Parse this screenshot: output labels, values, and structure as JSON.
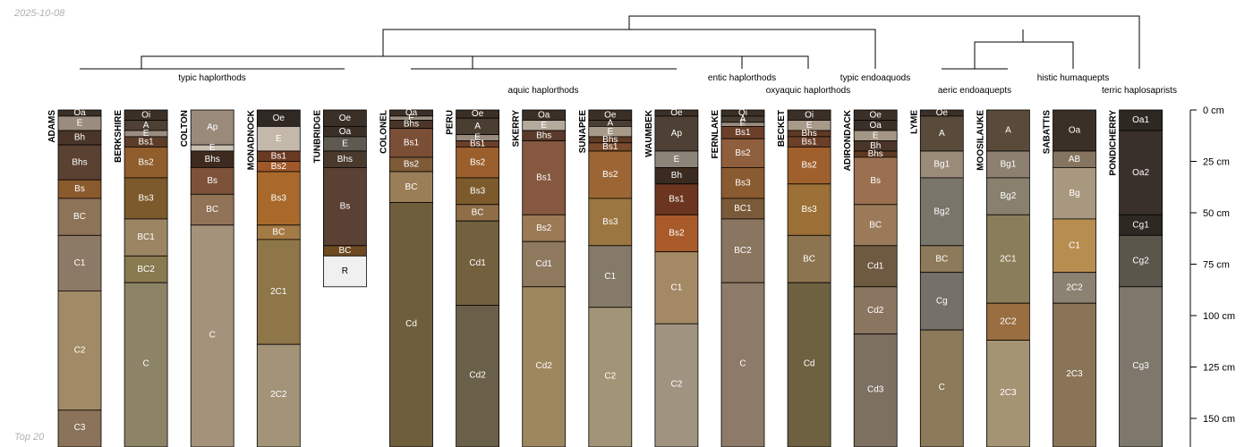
{
  "date_label": "2025-10-08",
  "footer_label": "Top 20",
  "depth_axis": {
    "unit": "cm",
    "max_depth": 165,
    "ticks": [
      {
        "value": 0,
        "label": "0 cm"
      },
      {
        "value": 25,
        "label": "25 cm"
      },
      {
        "value": 50,
        "label": "50 cm"
      },
      {
        "value": 75,
        "label": "75 cm"
      },
      {
        "value": 100,
        "label": "100 cm"
      },
      {
        "value": 125,
        "label": "125 cm"
      },
      {
        "value": 150,
        "label": "150 cm"
      }
    ]
  },
  "taxa_labels": [
    "typic haplorthods",
    "aquic haplorthods",
    "entic haplorthods",
    "oxyaquic haplorthods",
    "typic endoaquods",
    "aeric endoaquepts",
    "histic humaquepts",
    "terric haplosaprists"
  ],
  "profiles": [
    {
      "name": "ADAMS",
      "horizons": [
        {
          "name": "Oa",
          "top": 0,
          "bottom": 3,
          "color": "#3b3027"
        },
        {
          "name": "E",
          "top": 3,
          "bottom": 10,
          "color": "#9a8d80"
        },
        {
          "name": "Bh",
          "top": 10,
          "bottom": 17,
          "color": "#4a3528"
        },
        {
          "name": "Bhs",
          "top": 17,
          "bottom": 34,
          "color": "#5b4132"
        },
        {
          "name": "Bs",
          "top": 34,
          "bottom": 43,
          "color": "#8a5a2c"
        },
        {
          "name": "BC",
          "top": 43,
          "bottom": 61,
          "color": "#8d7357"
        },
        {
          "name": "C1",
          "top": 61,
          "bottom": 88,
          "color": "#8c7a66"
        },
        {
          "name": "C2",
          "top": 88,
          "bottom": 146,
          "color": "#a38a67"
        },
        {
          "name": "C3",
          "top": 146,
          "bottom": 165,
          "color": "#8a7359"
        }
      ]
    },
    {
      "name": "BERKSHIRE",
      "horizons": [
        {
          "name": "Oi",
          "top": 0,
          "bottom": 5,
          "color": "#3b3027"
        },
        {
          "name": "A",
          "top": 5,
          "bottom": 10,
          "color": "#4e4034"
        },
        {
          "name": "E",
          "top": 10,
          "bottom": 13,
          "color": "#9a8d80"
        },
        {
          "name": "Bs1",
          "top": 13,
          "bottom": 18,
          "color": "#5d3c2a"
        },
        {
          "name": "Bs2",
          "top": 18,
          "bottom": 33,
          "color": "#8f5e2c"
        },
        {
          "name": "Bs3",
          "top": 33,
          "bottom": 53,
          "color": "#7c5a2c"
        },
        {
          "name": "BC1",
          "top": 53,
          "bottom": 71,
          "color": "#9b8563"
        },
        {
          "name": "BC2",
          "top": 71,
          "bottom": 84,
          "color": "#8a7a50"
        },
        {
          "name": "C",
          "top": 84,
          "bottom": 165,
          "color": "#8d8468"
        }
      ]
    },
    {
      "name": "COLTON",
      "horizons": [
        {
          "name": "Ap",
          "top": 0,
          "bottom": 17,
          "color": "#9a8a7a"
        },
        {
          "name": "E",
          "top": 17,
          "bottom": 20,
          "color": "#c8bfb0"
        },
        {
          "name": "Bhs",
          "top": 20,
          "bottom": 28,
          "color": "#3f2a1f"
        },
        {
          "name": "Bs",
          "top": 28,
          "bottom": 41,
          "color": "#7d5239"
        },
        {
          "name": "BC",
          "top": 41,
          "bottom": 56,
          "color": "#917357"
        },
        {
          "name": "C",
          "top": 56,
          "bottom": 165,
          "color": "#a5927a"
        }
      ]
    },
    {
      "name": "MONADNOCK",
      "horizons": [
        {
          "name": "Oe",
          "top": 0,
          "bottom": 8,
          "color": "#2f2823"
        },
        {
          "name": "E",
          "top": 8,
          "bottom": 20,
          "color": "#c4b8ab"
        },
        {
          "name": "Bs1",
          "top": 20,
          "bottom": 25,
          "color": "#6b3a22"
        },
        {
          "name": "Bs2",
          "top": 25,
          "bottom": 30,
          "color": "#a0582a"
        },
        {
          "name": "Bs3",
          "top": 30,
          "bottom": 56,
          "color": "#a8692a"
        },
        {
          "name": "BC",
          "top": 56,
          "bottom": 63,
          "color": "#a47a45"
        },
        {
          "name": "2C1",
          "top": 63,
          "bottom": 114,
          "color": "#8e7649"
        },
        {
          "name": "2C2",
          "top": 114,
          "bottom": 165,
          "color": "#a39478"
        }
      ]
    },
    {
      "name": "TUNBRIDGE",
      "horizons": [
        {
          "name": "Oe",
          "top": 0,
          "bottom": 8,
          "color": "#3b3027"
        },
        {
          "name": "Oa",
          "top": 8,
          "bottom": 13,
          "color": "#3b3027"
        },
        {
          "name": "E",
          "top": 13,
          "bottom": 20,
          "color": "#5e5a50"
        },
        {
          "name": "Bhs",
          "top": 20,
          "bottom": 28,
          "color": "#4a3a2e"
        },
        {
          "name": "Bs",
          "top": 28,
          "bottom": 66,
          "color": "#5a4134"
        },
        {
          "name": "BC",
          "top": 66,
          "bottom": 71,
          "color": "#6e4a22"
        },
        {
          "name": "R",
          "top": 71,
          "bottom": 86,
          "color": "#f0f0f0",
          "light_text": false
        }
      ]
    },
    {
      "name": "COLONEL",
      "horizons": [
        {
          "name": "Oa",
          "top": 0,
          "bottom": 3,
          "color": "#3b3027"
        },
        {
          "name": "E",
          "top": 3,
          "bottom": 5,
          "color": "#9a8d80"
        },
        {
          "name": "Bhs",
          "top": 5,
          "bottom": 9,
          "color": "#4a3528"
        },
        {
          "name": "Bs1",
          "top": 9,
          "bottom": 23,
          "color": "#7a4f36"
        },
        {
          "name": "Bs2",
          "top": 23,
          "bottom": 30,
          "color": "#7e5a37"
        },
        {
          "name": "BC",
          "top": 30,
          "bottom": 45,
          "color": "#9a7e57"
        },
        {
          "name": "Cd",
          "top": 45,
          "bottom": 165,
          "color": "#6f5e3c"
        }
      ]
    },
    {
      "name": "PERU",
      "horizons": [
        {
          "name": "Oe",
          "top": 0,
          "bottom": 4,
          "color": "#3b3027"
        },
        {
          "name": "A",
          "top": 4,
          "bottom": 12,
          "color": "#4a3e32"
        },
        {
          "name": "E",
          "top": 12,
          "bottom": 15,
          "color": "#9a8d80"
        },
        {
          "name": "Bs1",
          "top": 15,
          "bottom": 18,
          "color": "#6b3f28"
        },
        {
          "name": "Bs2",
          "top": 18,
          "bottom": 33,
          "color": "#9a5f2d"
        },
        {
          "name": "Bs3",
          "top": 33,
          "bottom": 46,
          "color": "#7c5a2c"
        },
        {
          "name": "BC",
          "top": 46,
          "bottom": 54,
          "color": "#8e6d47"
        },
        {
          "name": "Cd1",
          "top": 54,
          "bottom": 95,
          "color": "#73603f"
        },
        {
          "name": "Cd2",
          "top": 95,
          "bottom": 165,
          "color": "#6a5f48"
        }
      ]
    },
    {
      "name": "SKERRY",
      "horizons": [
        {
          "name": "Oa",
          "top": 0,
          "bottom": 5,
          "color": "#3b3027"
        },
        {
          "name": "E",
          "top": 5,
          "bottom": 10,
          "color": "#b5aa9c"
        },
        {
          "name": "Bhs",
          "top": 10,
          "bottom": 15,
          "color": "#5a3a2a"
        },
        {
          "name": "Bs1",
          "top": 15,
          "bottom": 51,
          "color": "#85583f"
        },
        {
          "name": "Bs2",
          "top": 51,
          "bottom": 64,
          "color": "#9c7a55"
        },
        {
          "name": "Cd1",
          "top": 64,
          "bottom": 86,
          "color": "#8f7a60"
        },
        {
          "name": "Cd2",
          "top": 86,
          "bottom": 165,
          "color": "#9e865f"
        }
      ]
    },
    {
      "name": "SUNAPEE",
      "horizons": [
        {
          "name": "Oe",
          "top": 0,
          "bottom": 5,
          "color": "#3b3027"
        },
        {
          "name": "A",
          "top": 5,
          "bottom": 8,
          "color": "#4a3e32"
        },
        {
          "name": "E",
          "top": 8,
          "bottom": 13,
          "color": "#a89a88"
        },
        {
          "name": "Bhs",
          "top": 13,
          "bottom": 16,
          "color": "#5e3a24"
        },
        {
          "name": "Bs1",
          "top": 16,
          "bottom": 20,
          "color": "#7a4a2c"
        },
        {
          "name": "Bs2",
          "top": 20,
          "bottom": 43,
          "color": "#9c6634"
        },
        {
          "name": "Bs3",
          "top": 43,
          "bottom": 66,
          "color": "#9b7640"
        },
        {
          "name": "C1",
          "top": 66,
          "bottom": 96,
          "color": "#857a68"
        },
        {
          "name": "C2",
          "top": 96,
          "bottom": 165,
          "color": "#a29577"
        }
      ]
    },
    {
      "name": "WAUMBEK",
      "horizons": [
        {
          "name": "Oe",
          "top": 0,
          "bottom": 3,
          "color": "#3b3027"
        },
        {
          "name": "Ap",
          "top": 3,
          "bottom": 20,
          "color": "#4e4034"
        },
        {
          "name": "E",
          "top": 20,
          "bottom": 28,
          "color": "#8c8478"
        },
        {
          "name": "Bh",
          "top": 28,
          "bottom": 36,
          "color": "#3a2a20"
        },
        {
          "name": "Bs1",
          "top": 36,
          "bottom": 51,
          "color": "#6b3520"
        },
        {
          "name": "Bs2",
          "top": 51,
          "bottom": 69,
          "color": "#a85a2a"
        },
        {
          "name": "C1",
          "top": 69,
          "bottom": 104,
          "color": "#a48a64"
        },
        {
          "name": "C2",
          "top": 104,
          "bottom": 165,
          "color": "#a09480"
        }
      ]
    },
    {
      "name": "FERNLAKE",
      "horizons": [
        {
          "name": "Oi",
          "top": 0,
          "bottom": 3,
          "color": "#3b3027"
        },
        {
          "name": "A",
          "top": 3,
          "bottom": 6,
          "color": "#4a3e32"
        },
        {
          "name": "E",
          "top": 6,
          "bottom": 8,
          "color": "#9a8d80"
        },
        {
          "name": "Bs1",
          "top": 8,
          "bottom": 14,
          "color": "#6b3f28"
        },
        {
          "name": "Bs2",
          "top": 14,
          "bottom": 28,
          "color": "#8f5e3c"
        },
        {
          "name": "Bs3",
          "top": 28,
          "bottom": 43,
          "color": "#8a5a30"
        },
        {
          "name": "BC1",
          "top": 43,
          "bottom": 53,
          "color": "#7a5a38"
        },
        {
          "name": "BC2",
          "top": 53,
          "bottom": 84,
          "color": "#8a7560"
        },
        {
          "name": "C",
          "top": 84,
          "bottom": 165,
          "color": "#8d7a68"
        }
      ]
    },
    {
      "name": "BECKET",
      "horizons": [
        {
          "name": "Oi",
          "top": 0,
          "bottom": 5,
          "color": "#3b3027"
        },
        {
          "name": "E",
          "top": 5,
          "bottom": 10,
          "color": "#a89a88"
        },
        {
          "name": "Bhs",
          "top": 10,
          "bottom": 13,
          "color": "#5e3a24"
        },
        {
          "name": "Bs1",
          "top": 13,
          "bottom": 18,
          "color": "#6b3f28"
        },
        {
          "name": "Bs2",
          "top": 18,
          "bottom": 36,
          "color": "#a0602d"
        },
        {
          "name": "Bs3",
          "top": 36,
          "bottom": 61,
          "color": "#9c7036"
        },
        {
          "name": "BC",
          "top": 61,
          "bottom": 84,
          "color": "#8c7450"
        },
        {
          "name": "Cd",
          "top": 84,
          "bottom": 165,
          "color": "#6e6141"
        }
      ]
    },
    {
      "name": "ADIRONDACK",
      "horizons": [
        {
          "name": "Oe",
          "top": 0,
          "bottom": 5,
          "color": "#3b3027"
        },
        {
          "name": "Oa",
          "top": 5,
          "bottom": 10,
          "color": "#3b3027"
        },
        {
          "name": "E",
          "top": 10,
          "bottom": 15,
          "color": "#a39684"
        },
        {
          "name": "Bh",
          "top": 15,
          "bottom": 20,
          "color": "#4a3528"
        },
        {
          "name": "Bhs",
          "top": 20,
          "bottom": 23,
          "color": "#5e3a24"
        },
        {
          "name": "Bs",
          "top": 23,
          "bottom": 46,
          "color": "#9a7050"
        },
        {
          "name": "BC",
          "top": 46,
          "bottom": 66,
          "color": "#9a7a58"
        },
        {
          "name": "Cd1",
          "top": 66,
          "bottom": 86,
          "color": "#6e5a40"
        },
        {
          "name": "Cd2",
          "top": 86,
          "bottom": 109,
          "color": "#8a7560"
        },
        {
          "name": "Cd3",
          "top": 109,
          "bottom": 165,
          "color": "#7d7060"
        }
      ]
    },
    {
      "name": "LYME",
      "horizons": [
        {
          "name": "Oe",
          "top": 0,
          "bottom": 3,
          "color": "#3b3027"
        },
        {
          "name": "A",
          "top": 3,
          "bottom": 20,
          "color": "#5a4a3a"
        },
        {
          "name": "Bg1",
          "top": 20,
          "bottom": 33,
          "color": "#9a8a78"
        },
        {
          "name": "Bg2",
          "top": 33,
          "bottom": 66,
          "color": "#7a756a"
        },
        {
          "name": "BC",
          "top": 66,
          "bottom": 79,
          "color": "#8c7a5a"
        },
        {
          "name": "Cg",
          "top": 79,
          "bottom": 107,
          "color": "#757068"
        },
        {
          "name": "C",
          "top": 107,
          "bottom": 165,
          "color": "#8c7a5a"
        }
      ]
    },
    {
      "name": "MOOSILAUKE",
      "horizons": [
        {
          "name": "A",
          "top": 0,
          "bottom": 20,
          "color": "#5a4a3a"
        },
        {
          "name": "Bg1",
          "top": 20,
          "bottom": 33,
          "color": "#8c8070"
        },
        {
          "name": "Bg2",
          "top": 33,
          "bottom": 51,
          "color": "#8a806e"
        },
        {
          "name": "2C1",
          "top": 51,
          "bottom": 94,
          "color": "#8a7d5a"
        },
        {
          "name": "2C2",
          "top": 94,
          "bottom": 112,
          "color": "#9a6e40"
        },
        {
          "name": "2C3",
          "top": 112,
          "bottom": 165,
          "color": "#a49474"
        }
      ]
    },
    {
      "name": "SABATTIS",
      "horizons": [
        {
          "name": "Oa",
          "top": 0,
          "bottom": 20,
          "color": "#3b3027"
        },
        {
          "name": "AB",
          "top": 20,
          "bottom": 28,
          "color": "#857560"
        },
        {
          "name": "Bg",
          "top": 28,
          "bottom": 53,
          "color": "#a89880"
        },
        {
          "name": "C1",
          "top": 53,
          "bottom": 79,
          "color": "#b88e50"
        },
        {
          "name": "2C2",
          "top": 79,
          "bottom": 94,
          "color": "#8c8272"
        },
        {
          "name": "2C3",
          "top": 94,
          "bottom": 165,
          "color": "#8a7458"
        }
      ]
    },
    {
      "name": "PONDICHERRY",
      "horizons": [
        {
          "name": "Oa1",
          "top": 0,
          "bottom": 10,
          "color": "#2e2823"
        },
        {
          "name": "Oa2",
          "top": 10,
          "bottom": 51,
          "color": "#3a302a"
        },
        {
          "name": "Cg1",
          "top": 51,
          "bottom": 61,
          "color": "#2e2823"
        },
        {
          "name": "Cg2",
          "top": 61,
          "bottom": 86,
          "color": "#5a564c"
        },
        {
          "name": "Cg3",
          "top": 86,
          "bottom": 165,
          "color": "#7d776c"
        }
      ]
    }
  ]
}
